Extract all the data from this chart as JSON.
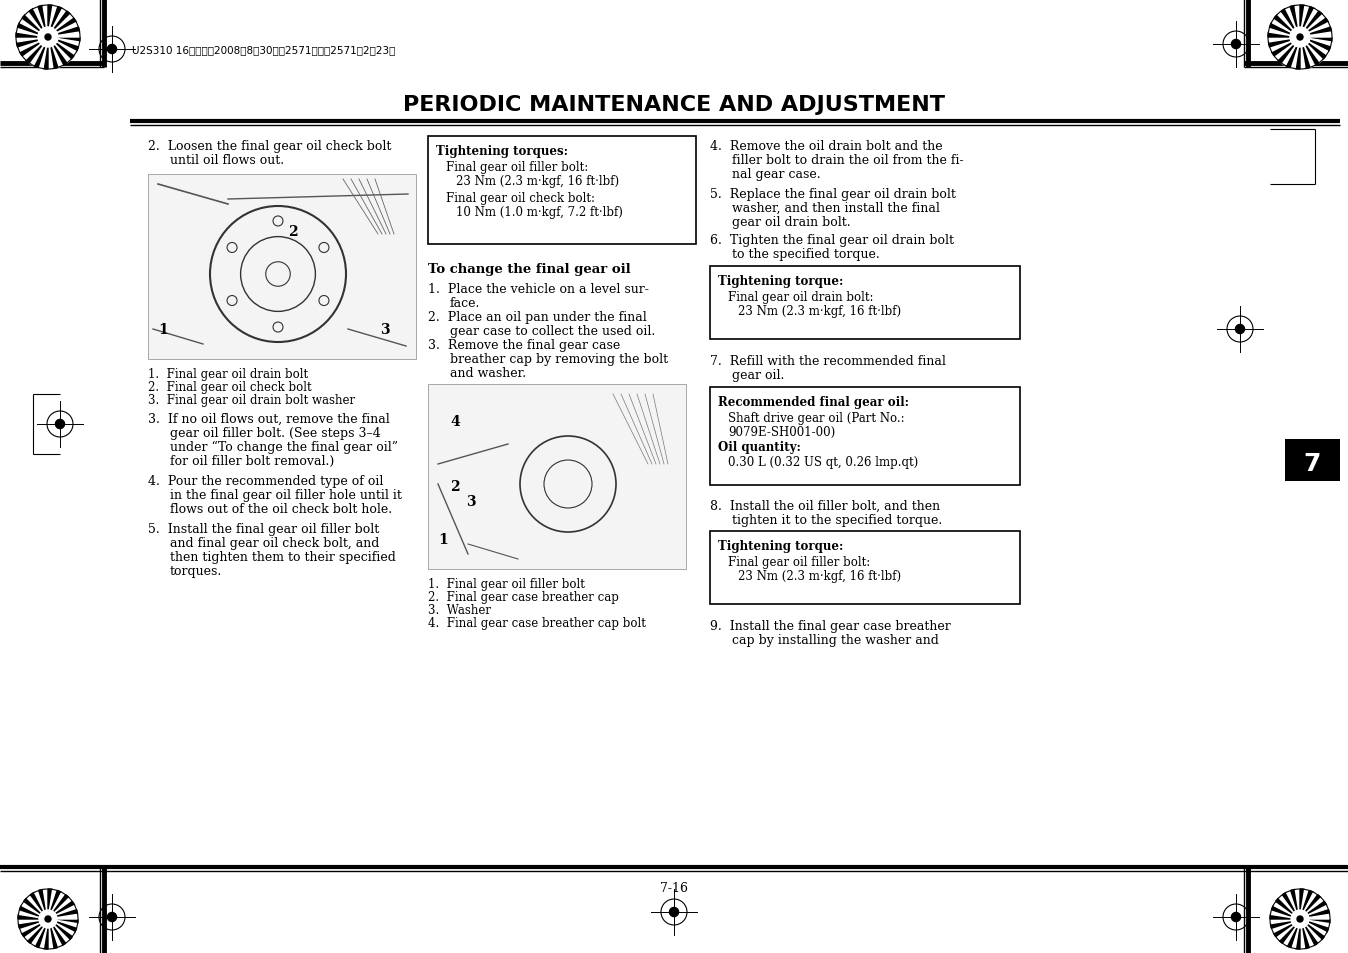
{
  "bg_color": "#ffffff",
  "title": "PERIODIC MAINTENANCE AND ADJUSTMENT",
  "header_text": "U2S310 16ページ　2008年8月30日　2571曜日　2571後2時23分",
  "page_number": "7-16",
  "section_number": "7",
  "tightening_box1": {
    "title": "Tightening torques:",
    "lines": [
      [
        "normal",
        "Final gear oil filler bolt:"
      ],
      [
        "normal",
        "   23 Nm (2.3 m·kgf, 16 ft·lbf)"
      ],
      [
        "normal",
        "Final gear oil check bolt:"
      ],
      [
        "normal",
        "   10 Nm (1.0 m·kgf, 7.2 ft·lbf)"
      ]
    ]
  },
  "tightening_box2": {
    "title": "Tightening torque:",
    "lines": [
      [
        "normal",
        "Final gear oil drain bolt:"
      ],
      [
        "normal",
        "   23 Nm (2.3 m·kgf, 16 ft·lbf)"
      ]
    ]
  },
  "recommended_box": {
    "title": "Recommended final gear oil:",
    "lines": [
      [
        "normal",
        "Shaft drive gear oil (Part No.:"
      ],
      [
        "normal",
        "9079E-SH001-00)"
      ],
      [
        "bold",
        "Oil quantity:"
      ],
      [
        "normal",
        "   0.30 L (0.32 US qt, 0.26 lmp.qt)"
      ]
    ]
  },
  "tightening_box3": {
    "title": "Tightening torque:",
    "lines": [
      [
        "normal",
        "Final gear oil filler bolt:"
      ],
      [
        "normal",
        "   23 Nm (2.3 m·kgf, 16 ft·lbf)"
      ]
    ]
  }
}
